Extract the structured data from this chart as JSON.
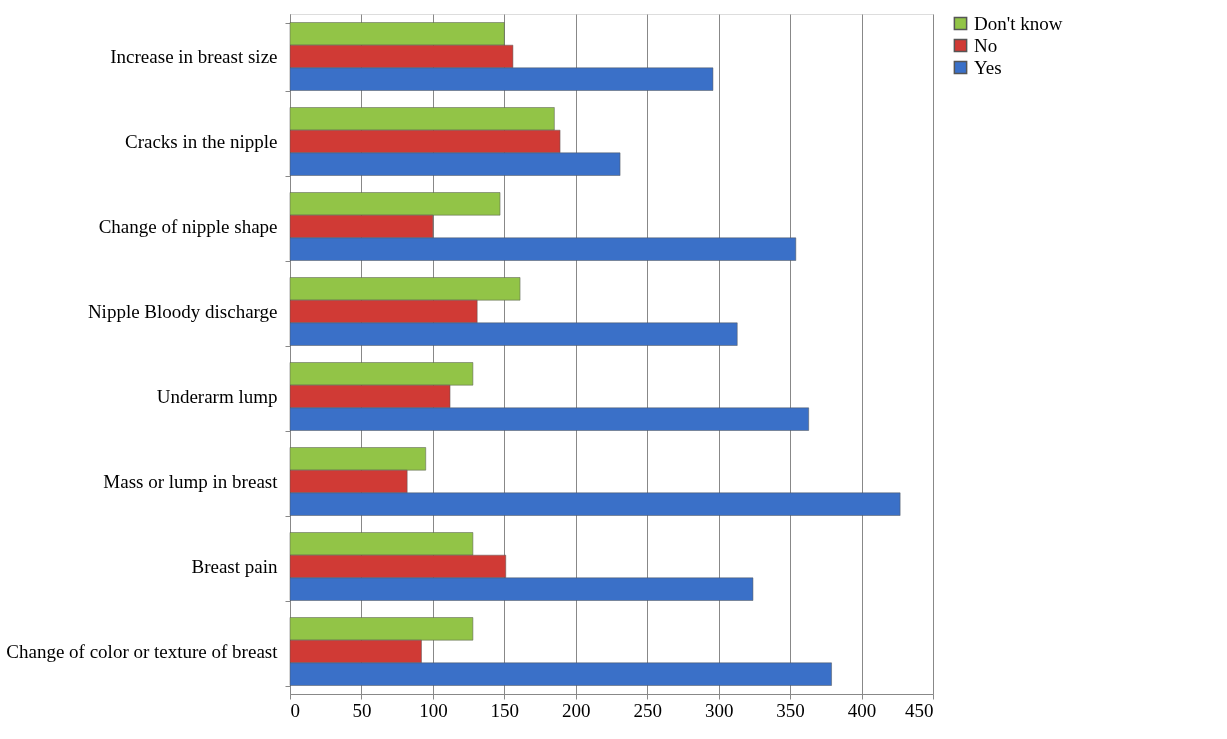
{
  "chart_data": {
    "type": "bar",
    "orientation": "horizontal",
    "categories": [
      "Increase in breast size",
      "Cracks in the nipple",
      "Change of nipple shape",
      "Nipple Bloody discharge",
      "Underarm lump",
      "Mass or lump in breast",
      "Breast pain",
      "Change of color or texture of breast"
    ],
    "series": [
      {
        "name": "Don't know",
        "color": "#92c447",
        "values": [
          150,
          185,
          147,
          161,
          128,
          95,
          128,
          128
        ]
      },
      {
        "name": "No",
        "color": "#d03a35",
        "values": [
          156,
          189,
          100,
          131,
          112,
          82,
          151,
          92
        ]
      },
      {
        "name": "Yes",
        "color": "#3a70c8",
        "values": [
          296,
          231,
          354,
          313,
          363,
          427,
          324,
          379
        ]
      }
    ],
    "xlim": [
      0,
      450
    ],
    "xticks": [
      0,
      50,
      100,
      150,
      200,
      250,
      300,
      350,
      400,
      450
    ],
    "grid": "x",
    "legend": "right"
  }
}
